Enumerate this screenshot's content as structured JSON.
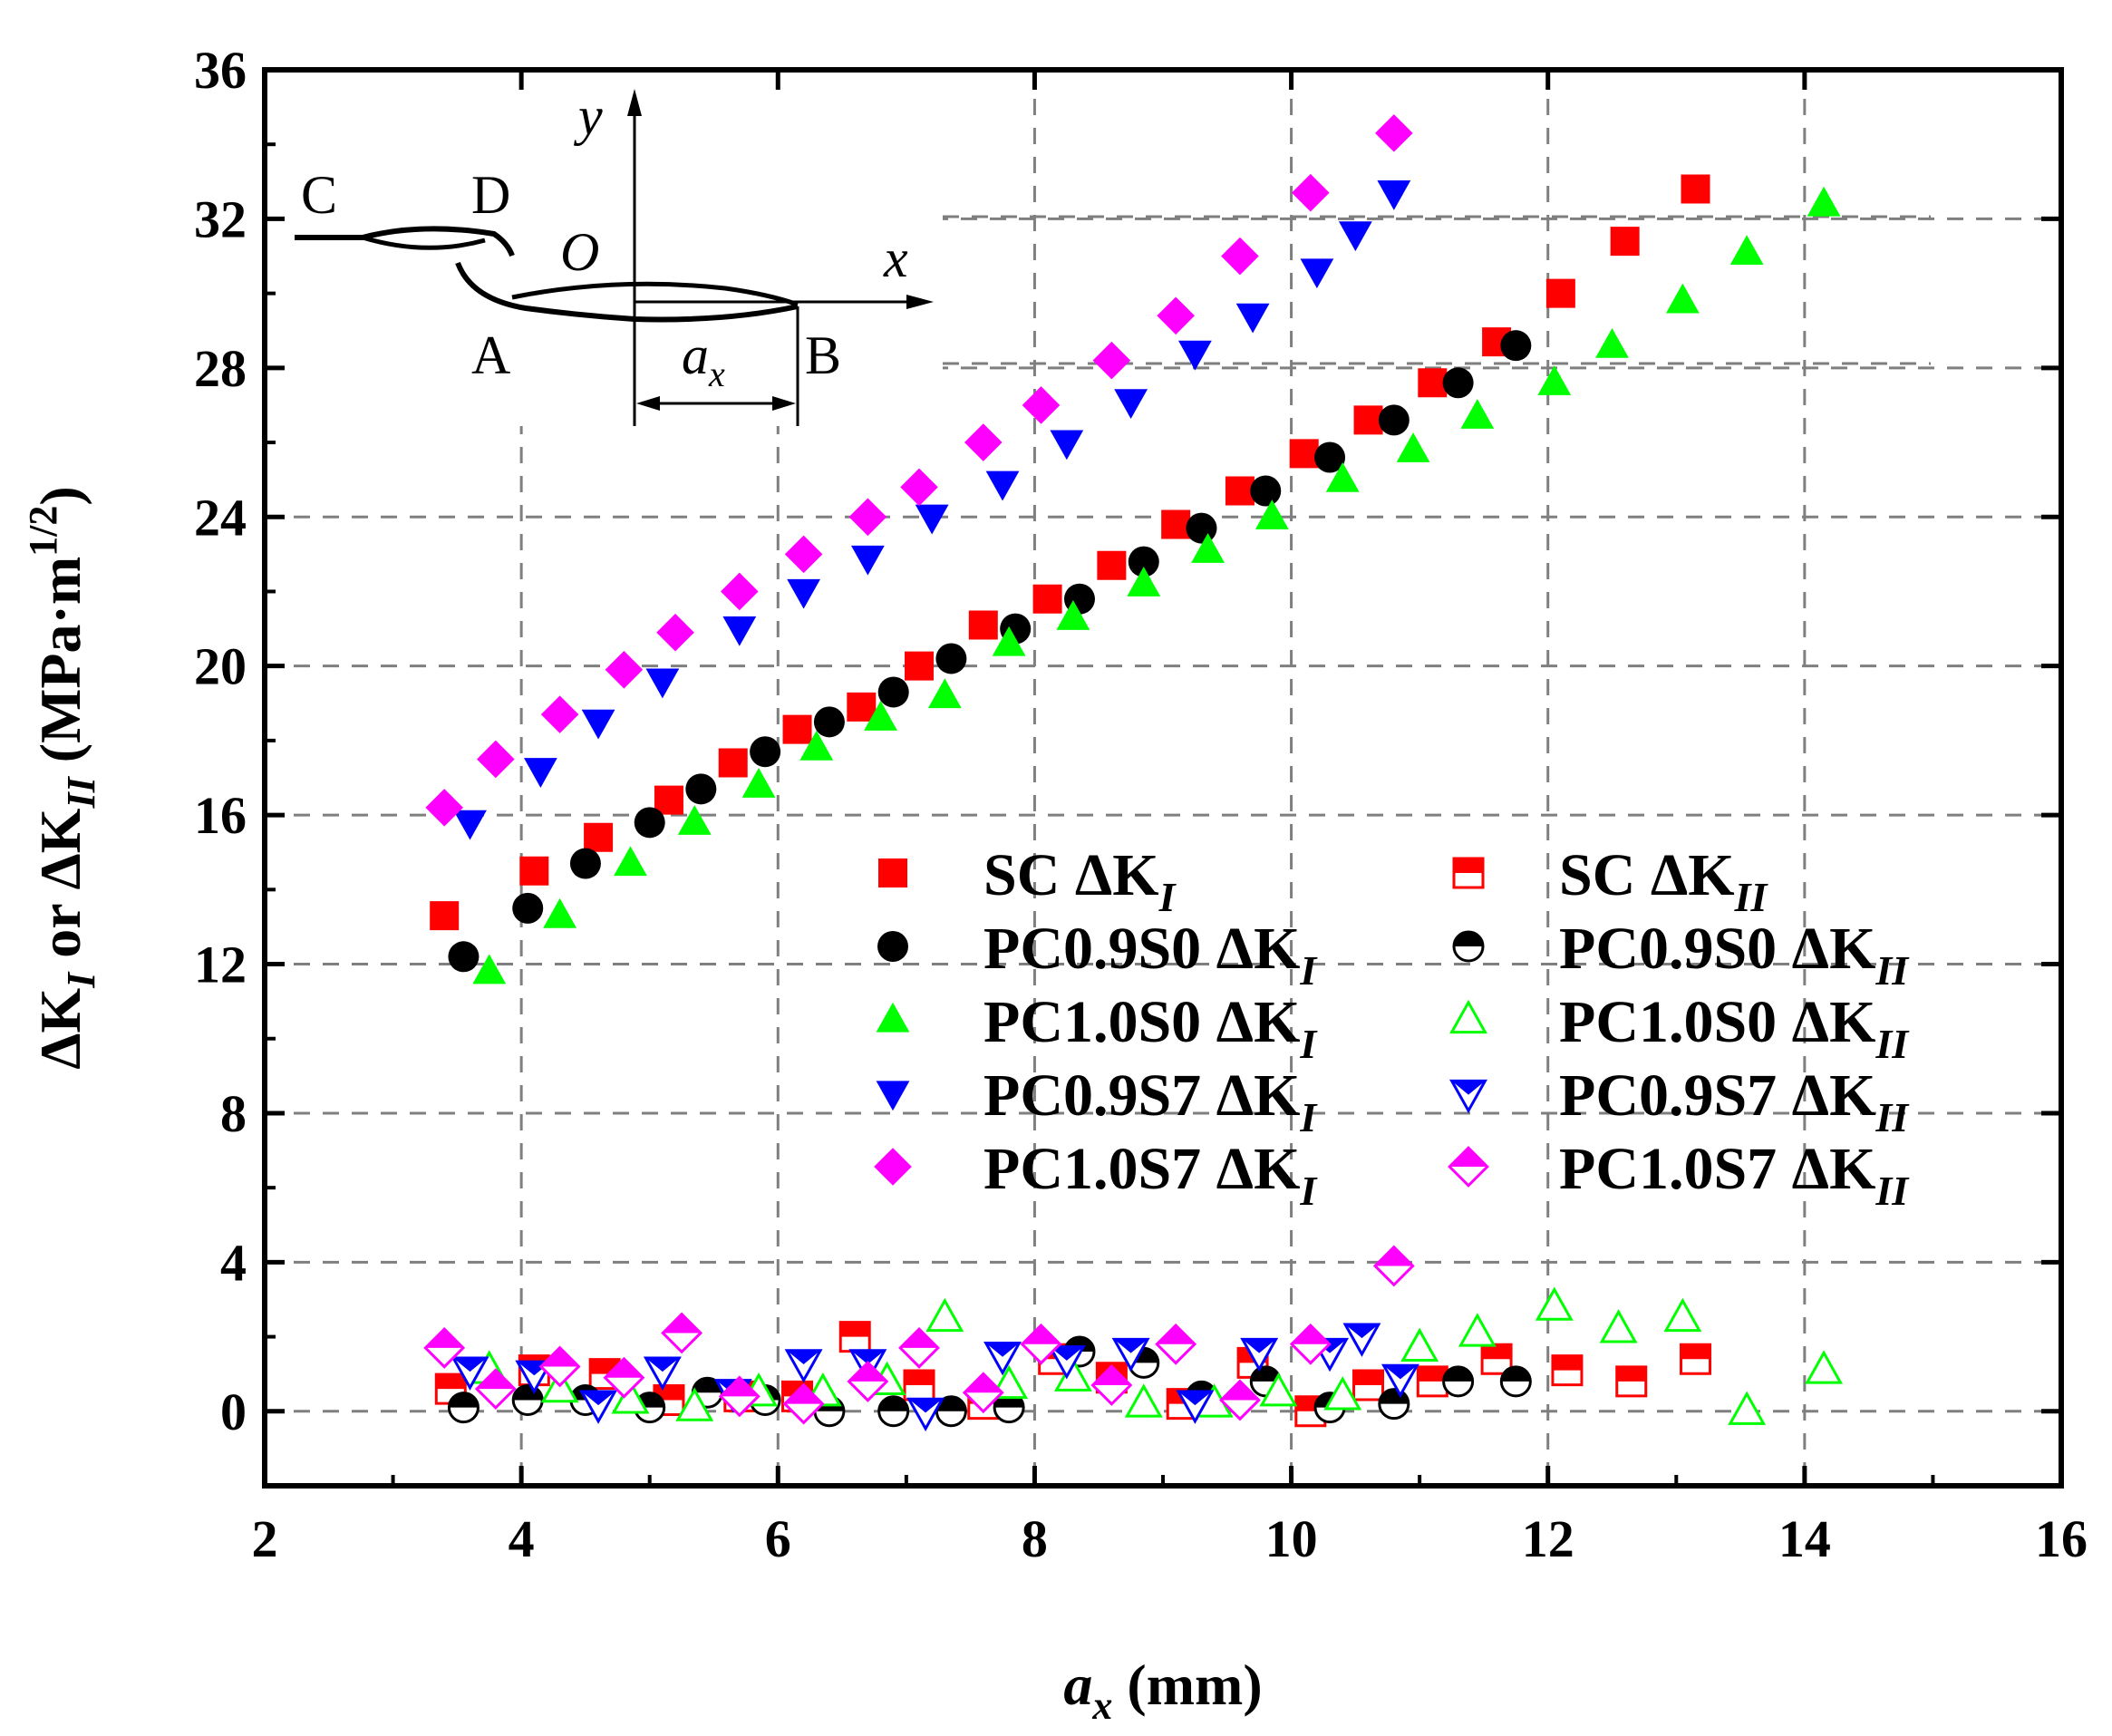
{
  "chart_data": {
    "type": "scatter",
    "title": "",
    "xlabel": {
      "var": "a",
      "sub": "x",
      "unit": "(mm)"
    },
    "ylabel": {
      "part1": "ΔK",
      "sub1": "I",
      "mid": " or ΔK",
      "sub2": "II",
      "unit": " (MPa·m",
      "sup": "1/2",
      "close": ")"
    },
    "xlim": [
      2,
      16
    ],
    "ylim": [
      -2,
      36
    ],
    "xticks": [
      2,
      4,
      6,
      8,
      10,
      12,
      14,
      16
    ],
    "yticks": [
      0,
      4,
      8,
      12,
      16,
      20,
      24,
      28,
      32,
      36
    ],
    "grid": true,
    "legend_location": "center-right",
    "inset": {
      "label_c": "C",
      "label_d": "D",
      "label_o": "O",
      "label_a": "A",
      "label_b": "B",
      "label_x": "x",
      "label_y": "y",
      "label_ax_var": "a",
      "label_ax_sub": "x"
    },
    "colors": {
      "red": "#ff0000",
      "black": "#000000",
      "green": "#00ff00",
      "blue": "#0000ff",
      "magenta": "#ff00ff"
    },
    "series": [
      {
        "name": "SC ΔK_I",
        "prefix": "SC ΔK",
        "sub": "I",
        "marker": "square",
        "color": "#ff0000",
        "fill": "full",
        "x": [
          3.4,
          4.1,
          4.6,
          5.15,
          5.65,
          6.15,
          6.65,
          7.1,
          7.6,
          8.1,
          8.6,
          9.1,
          9.6,
          10.1,
          10.6,
          11.1,
          11.6,
          12.1,
          12.6,
          13.15
        ],
        "y": [
          13.3,
          14.5,
          15.4,
          16.4,
          17.4,
          18.3,
          18.9,
          20.0,
          21.1,
          21.8,
          22.7,
          23.8,
          24.7,
          25.7,
          26.6,
          27.6,
          28.7,
          30.0,
          31.4,
          32.8
        ]
      },
      {
        "name": "PC0.9S0 ΔK_I",
        "prefix": "PC0.9S0 ΔK",
        "sub": "I",
        "marker": "circle",
        "color": "#000000",
        "fill": "full",
        "x": [
          3.55,
          4.05,
          4.5,
          5.0,
          5.4,
          5.9,
          6.4,
          6.9,
          7.35,
          7.85,
          8.35,
          8.85,
          9.3,
          9.8,
          10.3,
          10.8,
          11.3,
          11.75
        ],
        "y": [
          12.2,
          13.5,
          14.7,
          15.8,
          16.7,
          17.7,
          18.5,
          19.3,
          20.2,
          21.0,
          21.8,
          22.8,
          23.7,
          24.7,
          25.6,
          26.6,
          27.6,
          28.6
        ]
      },
      {
        "name": "PC1.0S0 ΔK_I",
        "prefix": "PC1.0S0 ΔK",
        "sub": "I",
        "marker": "triangle-up",
        "color": "#00ff00",
        "fill": "full",
        "x": [
          3.75,
          4.3,
          4.85,
          5.35,
          5.85,
          6.3,
          6.8,
          7.3,
          7.8,
          8.3,
          8.85,
          9.35,
          9.85,
          10.4,
          10.95,
          11.45,
          12.05,
          12.5,
          13.05,
          13.55,
          14.15
        ],
        "y": [
          11.8,
          13.3,
          14.7,
          15.8,
          16.8,
          17.8,
          18.6,
          19.2,
          20.6,
          21.3,
          22.2,
          23.1,
          24.0,
          25.0,
          25.8,
          26.7,
          27.6,
          28.6,
          29.8,
          31.1,
          32.4
        ]
      },
      {
        "name": "PC0.9S7 ΔK_I",
        "prefix": "PC0.9S7 ΔK",
        "sub": "I",
        "marker": "triangle-down",
        "color": "#0000ff",
        "fill": "full",
        "x": [
          3.6,
          4.15,
          4.6,
          5.1,
          5.7,
          6.2,
          6.7,
          7.2,
          7.75,
          8.25,
          8.75,
          9.25,
          9.7,
          10.2,
          10.5,
          10.8
        ],
        "y": [
          15.8,
          17.2,
          18.5,
          19.6,
          21.0,
          22.0,
          22.9,
          24.0,
          24.9,
          26.0,
          27.1,
          28.4,
          29.4,
          30.6,
          31.6,
          32.7
        ]
      },
      {
        "name": "PC1.0S7 ΔK_I",
        "prefix": "PC1.0S7 ΔK",
        "sub": "I",
        "marker": "diamond",
        "color": "#ff00ff",
        "fill": "full",
        "x": [
          3.4,
          3.8,
          4.3,
          4.8,
          5.2,
          5.7,
          6.2,
          6.7,
          7.1,
          7.6,
          8.05,
          8.6,
          9.1,
          9.6,
          10.15,
          10.8
        ],
        "y": [
          16.2,
          17.5,
          18.7,
          19.9,
          20.9,
          22.0,
          23.0,
          24.0,
          24.8,
          26.0,
          27.0,
          28.2,
          29.4,
          31.0,
          32.7,
          34.3
        ]
      },
      {
        "name": "SC ΔK_II",
        "prefix": "SC ΔK",
        "sub": "II",
        "marker": "square",
        "color": "#ff0000",
        "fill": "half",
        "x": [
          3.45,
          4.1,
          4.65,
          5.15,
          5.7,
          6.15,
          6.6,
          7.1,
          7.6,
          8.15,
          8.6,
          9.15,
          9.7,
          10.15,
          10.6,
          11.1,
          11.6,
          12.15,
          12.65,
          13.15
        ],
        "y": [
          0.6,
          1.1,
          1.0,
          0.3,
          0.4,
          0.4,
          2.0,
          0.7,
          0.2,
          1.4,
          0.9,
          0.2,
          1.3,
          0.0,
          0.7,
          0.8,
          1.4,
          1.1,
          0.8,
          1.4
        ]
      },
      {
        "name": "PC0.9S0 ΔK_II",
        "prefix": "PC0.9S0 ΔK",
        "sub": "II",
        "marker": "circle",
        "color": "#000000",
        "fill": "half",
        "x": [
          3.55,
          4.05,
          4.5,
          5.0,
          5.45,
          5.9,
          6.4,
          6.9,
          7.35,
          7.8,
          8.35,
          8.85,
          9.3,
          9.8,
          10.3,
          10.8,
          11.3,
          11.75
        ],
        "y": [
          0.1,
          0.3,
          0.3,
          0.1,
          0.5,
          0.3,
          0.0,
          0.0,
          0.0,
          0.1,
          1.6,
          1.3,
          0.4,
          0.8,
          0.1,
          0.2,
          0.8,
          0.8
        ]
      },
      {
        "name": "PC1.0S0 ΔK_II",
        "prefix": "PC1.0S0 ΔK",
        "sub": "II",
        "marker": "triangle-up",
        "color": "#00ff00",
        "fill": "open",
        "x": [
          3.75,
          4.3,
          4.85,
          5.35,
          5.85,
          6.35,
          6.85,
          7.3,
          7.8,
          8.3,
          8.85,
          9.4,
          9.9,
          10.4,
          11.0,
          11.45,
          12.05,
          12.55,
          13.05,
          13.55,
          14.15
        ],
        "y": [
          1.1,
          0.6,
          0.3,
          0.1,
          0.5,
          0.5,
          0.8,
          2.5,
          0.7,
          0.9,
          0.2,
          0.2,
          0.5,
          0.4,
          1.7,
          2.1,
          2.8,
          2.2,
          2.5,
          0.0,
          1.1
        ]
      },
      {
        "name": "PC0.9S7 ΔK_II",
        "prefix": "PC0.9S7 ΔK",
        "sub": "II",
        "marker": "triangle-down",
        "color": "#0000ff",
        "fill": "half",
        "x": [
          3.6,
          4.1,
          4.6,
          5.1,
          5.65,
          6.2,
          6.7,
          7.15,
          7.75,
          8.25,
          8.75,
          9.25,
          9.75,
          10.3,
          10.55,
          10.85
        ],
        "y": [
          1.1,
          1.0,
          0.2,
          1.1,
          0.5,
          1.3,
          1.3,
          0.0,
          1.5,
          1.4,
          1.6,
          0.2,
          1.6,
          1.6,
          2.0,
          0.9
        ]
      },
      {
        "name": "PC1.0S7 ΔK_II",
        "prefix": "PC1.0S7 ΔK",
        "sub": "II",
        "marker": "diamond",
        "color": "#ff00ff",
        "fill": "half",
        "x": [
          3.4,
          3.8,
          4.3,
          4.8,
          5.25,
          5.7,
          6.2,
          6.7,
          7.1,
          7.6,
          8.05,
          8.6,
          9.1,
          9.6,
          10.15,
          10.8
        ],
        "y": [
          1.7,
          0.6,
          1.2,
          0.9,
          2.1,
          0.4,
          0.2,
          0.8,
          1.7,
          0.5,
          1.8,
          0.7,
          1.8,
          0.3,
          1.8,
          3.9
        ]
      }
    ]
  }
}
